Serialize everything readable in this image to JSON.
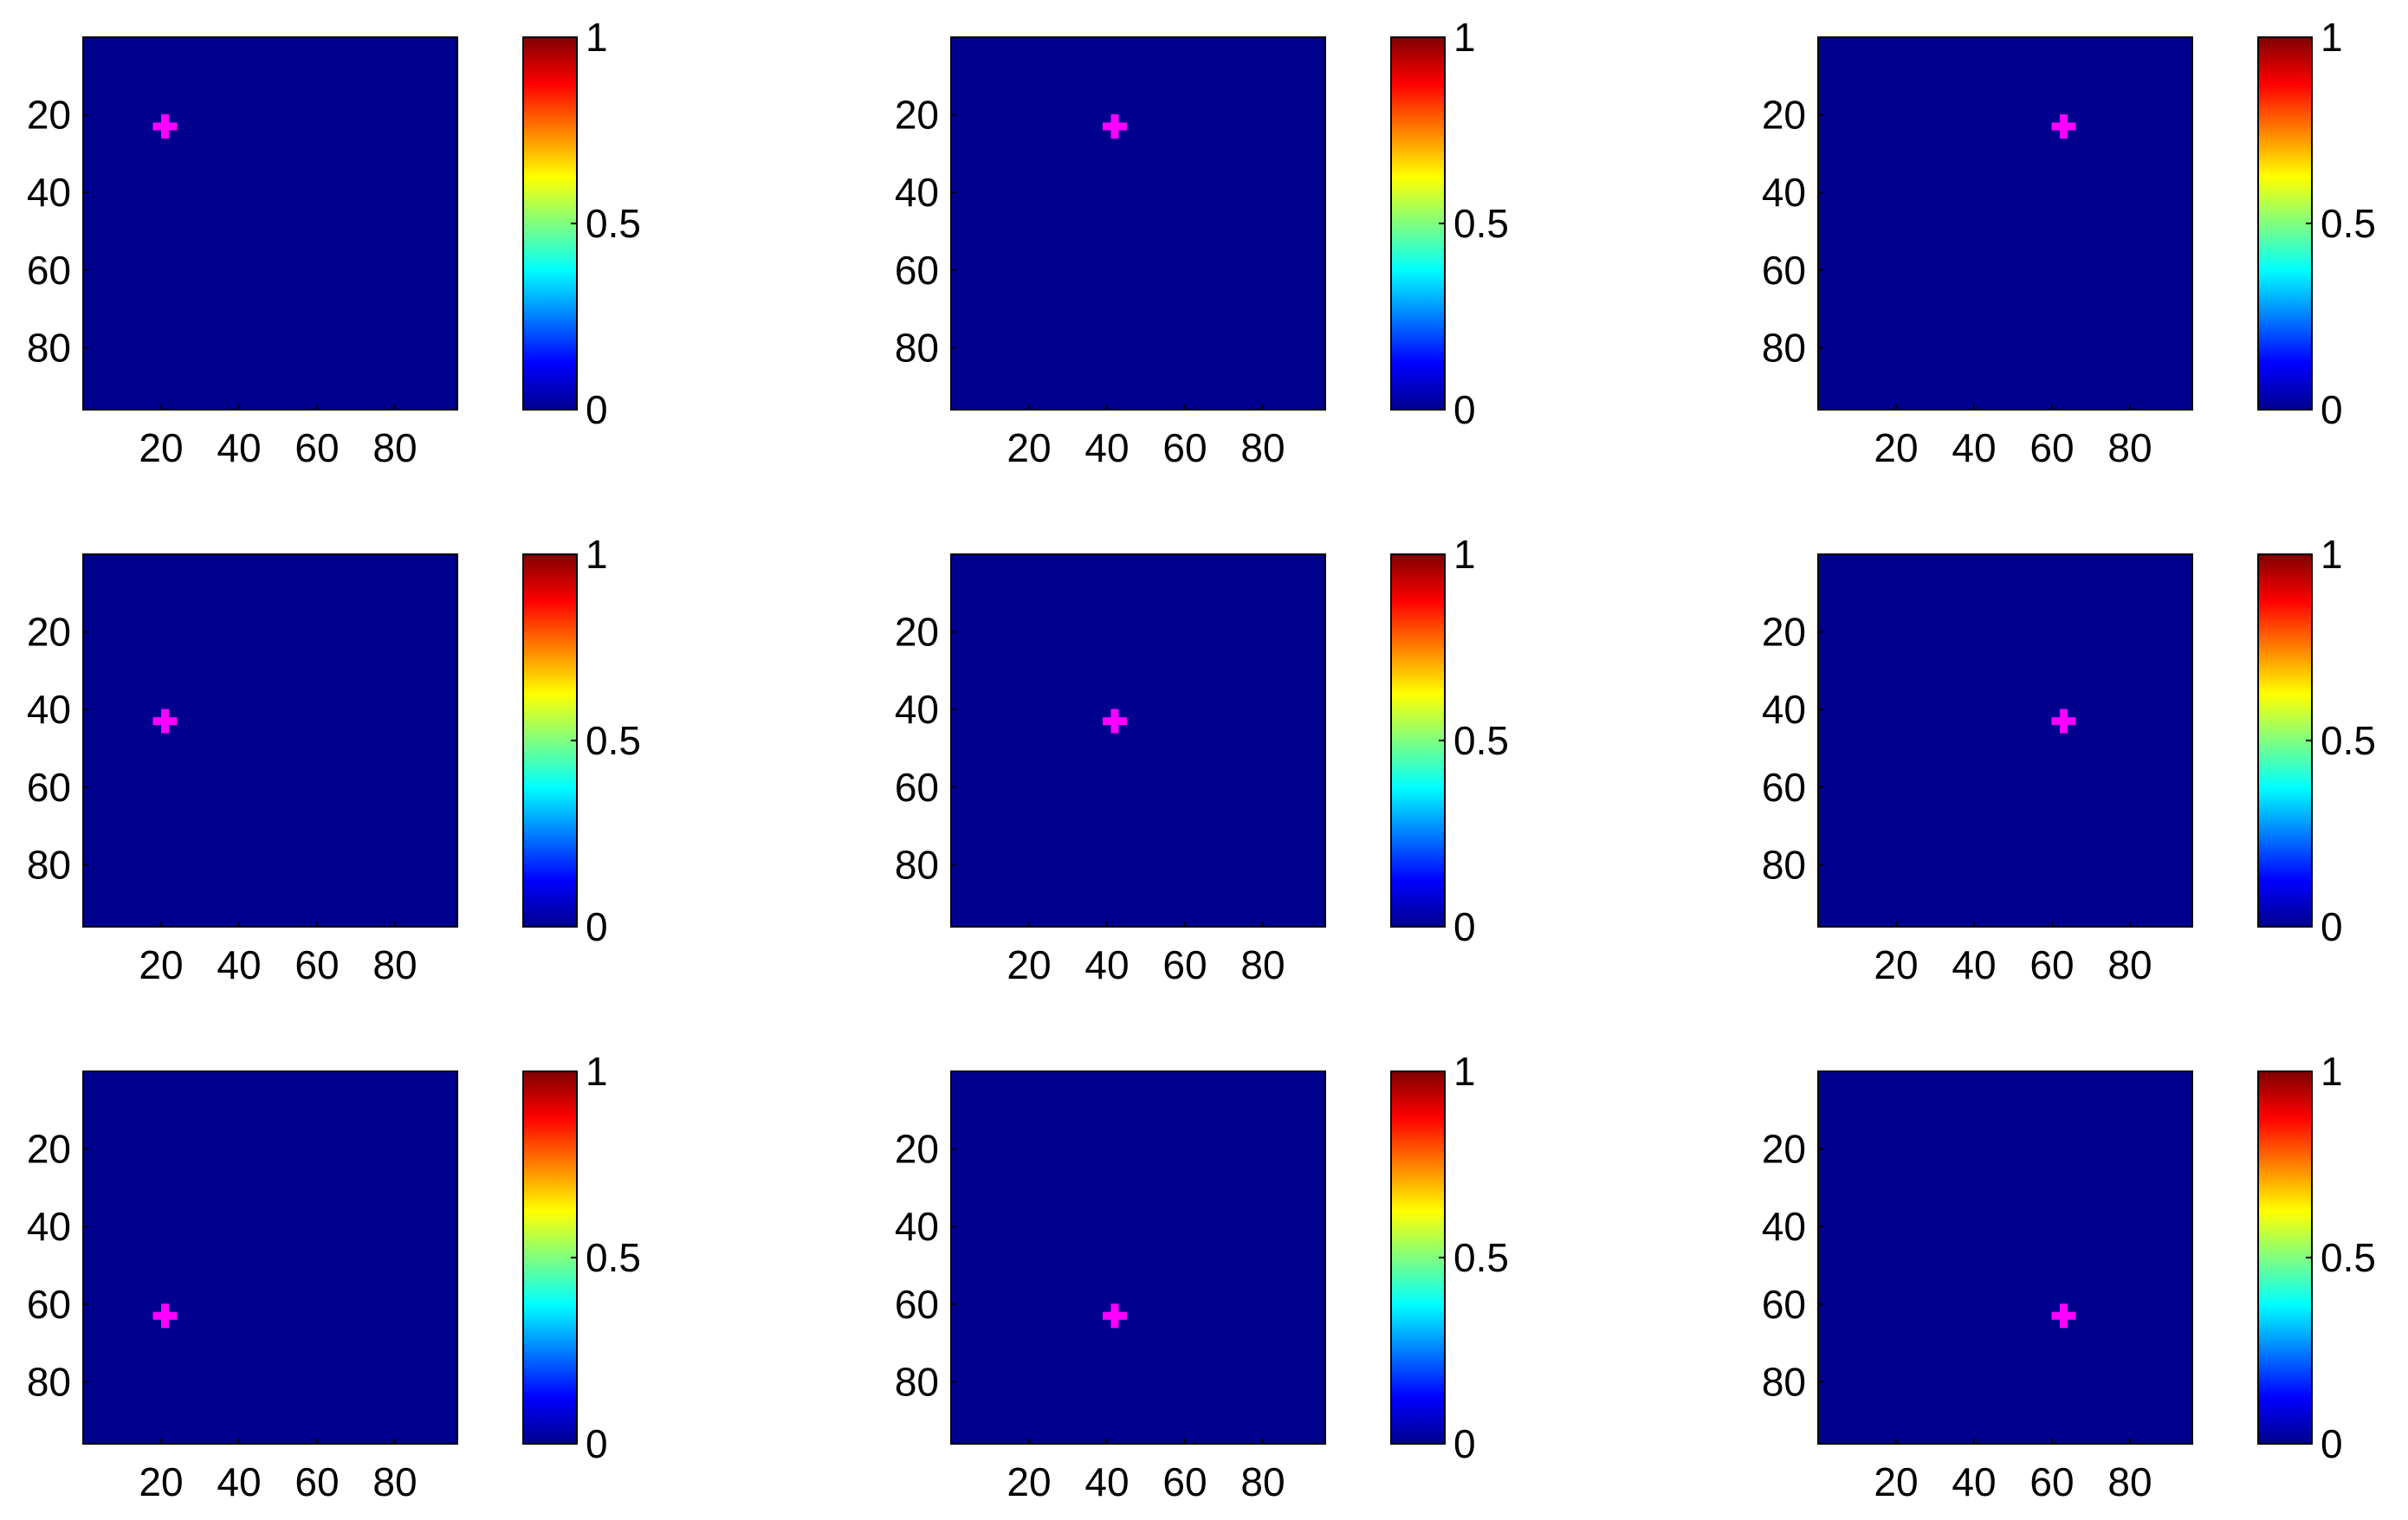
{
  "chart_data": [
    {
      "type": "heatmap",
      "xticks": [
        20,
        40,
        60,
        80
      ],
      "yticks": [
        20,
        40,
        60,
        80
      ],
      "xlim": [
        0,
        96
      ],
      "ylim": [
        0,
        96
      ],
      "y_reversed": true,
      "fill_value": 0,
      "marker": {
        "x": 21,
        "y": 23,
        "shape": "plus"
      },
      "colorbar": {
        "ticks": [
          0,
          0.5,
          1
        ],
        "tick_labels": [
          "0",
          "0.5",
          "1"
        ],
        "range": [
          0,
          1
        ],
        "colormap": "jet"
      }
    },
    {
      "type": "heatmap",
      "xticks": [
        20,
        40,
        60,
        80
      ],
      "yticks": [
        20,
        40,
        60,
        80
      ],
      "xlim": [
        0,
        96
      ],
      "ylim": [
        0,
        96
      ],
      "y_reversed": true,
      "fill_value": 0,
      "marker": {
        "x": 42,
        "y": 23,
        "shape": "plus"
      },
      "colorbar": {
        "ticks": [
          0,
          0.5,
          1
        ],
        "tick_labels": [
          "0",
          "0.5",
          "1"
        ],
        "range": [
          0,
          1
        ],
        "colormap": "jet"
      }
    },
    {
      "type": "heatmap",
      "xticks": [
        20,
        40,
        60,
        80
      ],
      "yticks": [
        20,
        40,
        60,
        80
      ],
      "xlim": [
        0,
        96
      ],
      "ylim": [
        0,
        96
      ],
      "y_reversed": true,
      "fill_value": 0,
      "marker": {
        "x": 63,
        "y": 23,
        "shape": "plus"
      },
      "colorbar": {
        "ticks": [
          0,
          0.5,
          1
        ],
        "tick_labels": [
          "0",
          "0.5",
          "1"
        ],
        "range": [
          0,
          1
        ],
        "colormap": "jet"
      }
    },
    {
      "type": "heatmap",
      "xticks": [
        20,
        40,
        60,
        80
      ],
      "yticks": [
        20,
        40,
        60,
        80
      ],
      "xlim": [
        0,
        96
      ],
      "ylim": [
        0,
        96
      ],
      "y_reversed": true,
      "fill_value": 0,
      "marker": {
        "x": 21,
        "y": 43,
        "shape": "plus"
      },
      "colorbar": {
        "ticks": [
          0,
          0.5,
          1
        ],
        "tick_labels": [
          "0",
          "0.5",
          "1"
        ],
        "range": [
          0,
          1
        ],
        "colormap": "jet"
      }
    },
    {
      "type": "heatmap",
      "xticks": [
        20,
        40,
        60,
        80
      ],
      "yticks": [
        20,
        40,
        60,
        80
      ],
      "xlim": [
        0,
        96
      ],
      "ylim": [
        0,
        96
      ],
      "y_reversed": true,
      "fill_value": 0,
      "marker": {
        "x": 42,
        "y": 43,
        "shape": "plus"
      },
      "colorbar": {
        "ticks": [
          0,
          0.5,
          1
        ],
        "tick_labels": [
          "0",
          "0.5",
          "1"
        ],
        "range": [
          0,
          1
        ],
        "colormap": "jet"
      }
    },
    {
      "type": "heatmap",
      "xticks": [
        20,
        40,
        60,
        80
      ],
      "yticks": [
        20,
        40,
        60,
        80
      ],
      "xlim": [
        0,
        96
      ],
      "ylim": [
        0,
        96
      ],
      "y_reversed": true,
      "fill_value": 0,
      "marker": {
        "x": 63,
        "y": 43,
        "shape": "plus"
      },
      "colorbar": {
        "ticks": [
          0,
          0.5,
          1
        ],
        "tick_labels": [
          "0",
          "0.5",
          "1"
        ],
        "range": [
          0,
          1
        ],
        "colormap": "jet"
      }
    },
    {
      "type": "heatmap",
      "xticks": [
        20,
        40,
        60,
        80
      ],
      "yticks": [
        20,
        40,
        60,
        80
      ],
      "xlim": [
        0,
        96
      ],
      "ylim": [
        0,
        96
      ],
      "y_reversed": true,
      "fill_value": 0,
      "marker": {
        "x": 21,
        "y": 63,
        "shape": "plus"
      },
      "colorbar": {
        "ticks": [
          0,
          0.5,
          1
        ],
        "tick_labels": [
          "0",
          "0.5",
          "1"
        ],
        "range": [
          0,
          1
        ],
        "colormap": "jet"
      }
    },
    {
      "type": "heatmap",
      "xticks": [
        20,
        40,
        60,
        80
      ],
      "yticks": [
        20,
        40,
        60,
        80
      ],
      "xlim": [
        0,
        96
      ],
      "ylim": [
        0,
        96
      ],
      "y_reversed": true,
      "fill_value": 0,
      "marker": {
        "x": 42,
        "y": 63,
        "shape": "plus"
      },
      "colorbar": {
        "ticks": [
          0,
          0.5,
          1
        ],
        "tick_labels": [
          "0",
          "0.5",
          "1"
        ],
        "range": [
          0,
          1
        ],
        "colormap": "jet"
      }
    },
    {
      "type": "heatmap",
      "xticks": [
        20,
        40,
        60,
        80
      ],
      "yticks": [
        20,
        40,
        60,
        80
      ],
      "xlim": [
        0,
        96
      ],
      "ylim": [
        0,
        96
      ],
      "y_reversed": true,
      "fill_value": 0,
      "marker": {
        "x": 63,
        "y": 63,
        "shape": "plus"
      },
      "colorbar": {
        "ticks": [
          0,
          0.5,
          1
        ],
        "tick_labels": [
          "0",
          "0.5",
          "1"
        ],
        "range": [
          0,
          1
        ],
        "colormap": "jet"
      }
    }
  ],
  "colors": {
    "plot_background": "#00008F",
    "marker": "#FF00FF",
    "axis_line": "#000000",
    "text": "#000000",
    "jet_stops": [
      "#00008F",
      "#0000FF",
      "#00FFFF",
      "#FFFF00",
      "#FF0000",
      "#800000"
    ]
  }
}
